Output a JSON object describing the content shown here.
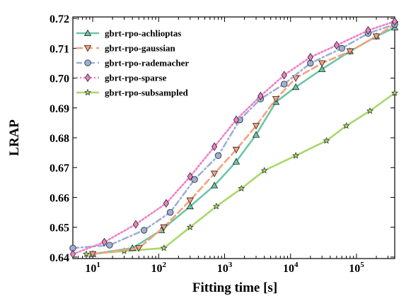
{
  "chart_data": {
    "type": "line",
    "xlabel": "Fitting time [s]",
    "ylabel": "LRAP",
    "xscale": "log",
    "xlim": [
      5,
      380000
    ],
    "ylim": [
      0.6395,
      0.7205
    ],
    "grid": false,
    "legend_position": "top-left",
    "y_ticks": [
      {
        "value": 0.64,
        "label": "0.64"
      },
      {
        "value": 0.65,
        "label": "0.65"
      },
      {
        "value": 0.66,
        "label": "0.66"
      },
      {
        "value": 0.67,
        "label": "0.67"
      },
      {
        "value": 0.68,
        "label": "0.68"
      },
      {
        "value": 0.69,
        "label": "0.69"
      },
      {
        "value": 0.7,
        "label": "0.70"
      },
      {
        "value": 0.71,
        "label": "0.71"
      },
      {
        "value": 0.72,
        "label": "0.72"
      }
    ],
    "x_ticks": [
      {
        "value": 10,
        "base": "10",
        "exp": "1"
      },
      {
        "value": 100,
        "base": "10",
        "exp": "2"
      },
      {
        "value": 1000,
        "base": "10",
        "exp": "3"
      },
      {
        "value": 10000,
        "base": "10",
        "exp": "4"
      },
      {
        "value": 100000,
        "base": "10",
        "exp": "5"
      }
    ],
    "series": [
      {
        "name": "gbrt-rpo-achlioptas",
        "color": "#6cc6a6",
        "dash": "solid",
        "marker": "triangle-up",
        "x": [
          10,
          40,
          110,
          300,
          700,
          1500,
          3000,
          6000,
          12000,
          30000,
          80000,
          200000,
          380000
        ],
        "y": [
          0.641,
          0.643,
          0.649,
          0.657,
          0.664,
          0.672,
          0.681,
          0.692,
          0.697,
          0.703,
          0.709,
          0.714,
          0.717
        ]
      },
      {
        "name": "gbrt-rpo-gaussian",
        "color": "#f7a07a",
        "dash": "dashed",
        "marker": "triangle-down",
        "x": [
          10,
          50,
          120,
          300,
          700,
          1500,
          3000,
          6000,
          12000,
          30000,
          80000,
          200000,
          380000
        ],
        "y": [
          0.641,
          0.643,
          0.65,
          0.659,
          0.668,
          0.676,
          0.684,
          0.693,
          0.7,
          0.705,
          0.709,
          0.714,
          0.718
        ]
      },
      {
        "name": "gbrt-rpo-rademacher",
        "color": "#9dafd6",
        "dash": "dashdot",
        "marker": "circle",
        "x": [
          5,
          18,
          60,
          150,
          350,
          800,
          1700,
          3500,
          8000,
          20000,
          60000,
          150000,
          380000
        ],
        "y": [
          0.643,
          0.644,
          0.649,
          0.655,
          0.666,
          0.674,
          0.686,
          0.693,
          0.698,
          0.705,
          0.71,
          0.715,
          0.718
        ]
      },
      {
        "name": "gbrt-rpo-sparse",
        "color": "#ef7fc4",
        "dash": "dotted",
        "marker": "diamond",
        "x": [
          5,
          15,
          45,
          130,
          300,
          700,
          1500,
          3500,
          8000,
          20000,
          50000,
          150000,
          380000
        ],
        "y": [
          0.641,
          0.645,
          0.651,
          0.658,
          0.667,
          0.677,
          0.686,
          0.694,
          0.701,
          0.707,
          0.711,
          0.716,
          0.719
        ]
      },
      {
        "name": "gbrt-rpo-subsampled",
        "color": "#a9d86b",
        "dash": "solid",
        "marker": "star",
        "x": [
          8,
          30,
          120,
          300,
          750,
          1800,
          4000,
          12000,
          35000,
          70000,
          160000,
          380000
        ],
        "y": [
          0.641,
          0.642,
          0.643,
          0.65,
          0.657,
          0.663,
          0.669,
          0.674,
          0.679,
          0.684,
          0.689,
          0.695
        ]
      }
    ]
  }
}
